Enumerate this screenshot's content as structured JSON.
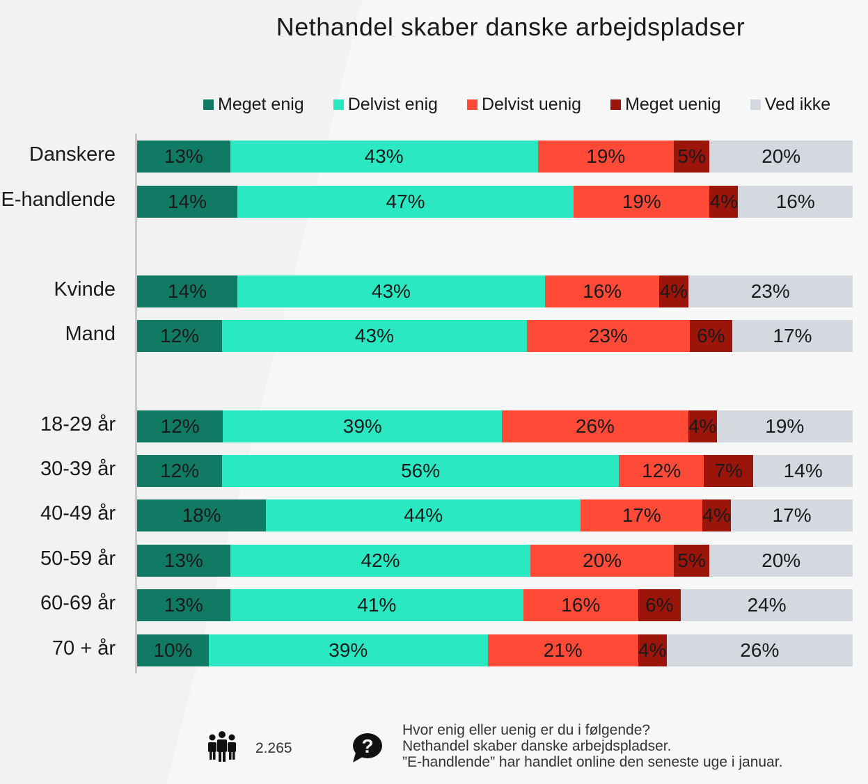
{
  "chart_data": {
    "type": "bar",
    "stacked": true,
    "orientation": "horizontal",
    "title": "Nethandel skaber danske arbejdspladser",
    "legend_position": "top",
    "value_suffix": "%",
    "categories": [
      "Danskere",
      "E-handlende",
      "Kvinde",
      "Mand",
      "18-29 år",
      "30-39 år",
      "40-49 år",
      "50-59 år",
      "60-69 år",
      "70 + år"
    ],
    "series": [
      {
        "name": "Meget enig",
        "color": "#117a65",
        "values": [
          13,
          14,
          14,
          12,
          12,
          12,
          18,
          13,
          13,
          10
        ]
      },
      {
        "name": "Delvist enig",
        "color": "#2ae8c2",
        "values": [
          43,
          47,
          43,
          43,
          39,
          56,
          44,
          42,
          41,
          39
        ]
      },
      {
        "name": "Delvist uenig",
        "color": "#ff4a38",
        "values": [
          19,
          19,
          16,
          23,
          26,
          12,
          17,
          20,
          16,
          21
        ]
      },
      {
        "name": "Meget uenig",
        "color": "#9c150b",
        "values": [
          5,
          4,
          4,
          6,
          4,
          7,
          4,
          5,
          6,
          4
        ]
      },
      {
        "name": "Ved ikke",
        "color": "#d4d8df",
        "values": [
          20,
          16,
          23,
          17,
          19,
          14,
          17,
          20,
          24,
          26
        ]
      }
    ]
  },
  "footer": {
    "respondents": "2.265",
    "people_icon": "people-icon",
    "question_icon": "question-bubble-icon",
    "question_line1": "Hvor enig eller uenig er du i følgende?",
    "question_line2": "Nethandel skaber danske arbejdspladser.",
    "question_line3": "”E-handlende” har handlet online den seneste uge i januar."
  }
}
